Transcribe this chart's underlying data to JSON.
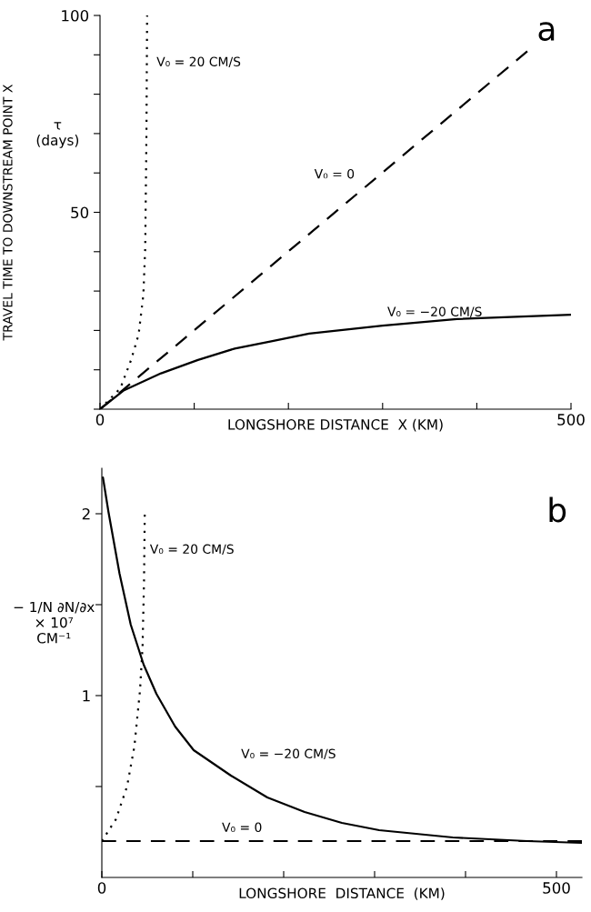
{
  "chart_data": [
    {
      "type": "line",
      "title": "a",
      "xlabel": "LONGSHORE DISTANCE  X (KM)",
      "ylabel": "TRAVEL TIME TO DOWNSTREAM POINT X",
      "xlim": [
        0,
        500
      ],
      "ylim": [
        0,
        100
      ],
      "xticks": [
        0,
        {
          "value": 100,
          "label": null
        },
        {
          "value": 200,
          "label": null
        },
        {
          "value": 300,
          "label": null
        },
        {
          "value": 400,
          "label": null
        },
        500
      ],
      "yticks": [
        {
          "value": 0,
          "label": null
        },
        {
          "value": 10,
          "label": null
        },
        {
          "value": 20,
          "label": null
        },
        {
          "value": 30,
          "label": null
        },
        {
          "value": 40,
          "label": null
        },
        50,
        {
          "value": 60,
          "label": null
        },
        {
          "value": 70,
          "label": null
        },
        {
          "value": 80,
          "label": null
        },
        {
          "value": 90,
          "label": null
        },
        100
      ],
      "tick_labels": "xy",
      "grid": false,
      "legend": false,
      "series": [
        {
          "name": "V₀ = 20 CM/S",
          "color": "#000000",
          "line_style": "dotted",
          "x": [
            0,
            21.6,
            33,
            41,
            46,
            48,
            49.3,
            50
          ],
          "values": [
            0,
            5.3,
            12.5,
            19,
            29,
            41,
            70,
            100
          ]
        },
        {
          "name": "V₀ = 0",
          "color": "#000000",
          "line_style": "dashed",
          "x": [
            0,
            453.6
          ],
          "values": [
            0,
            90.9
          ]
        },
        {
          "name": "V₀ = −20 CM/S",
          "color": "#000000",
          "line_style": "solid",
          "x": [
            0,
            25.5,
            64.8,
            104,
            143,
            183,
            222,
            300,
            379,
            500
          ],
          "values": [
            0,
            4.8,
            9.1,
            12.5,
            15.4,
            17.3,
            19.2,
            21.2,
            22.9,
            24.0
          ]
        }
      ],
      "annotations": [
        "τ\n(days)"
      ]
    },
    {
      "type": "line",
      "title": "b",
      "xlabel": "LONGSHORE  DISTANCE  (KM)",
      "ylabel": "− 1/N ∂N/∂x\n× 10⁷\nCM⁻¹",
      "xlim": [
        0,
        528
      ],
      "ylim": [
        0,
        2.25
      ],
      "xticks": [
        0,
        {
          "value": 100,
          "label": null
        },
        {
          "value": 200,
          "label": null
        },
        {
          "value": 300,
          "label": null
        },
        {
          "value": 400,
          "label": null
        },
        500
      ],
      "yticks": [
        {
          "value": 0.5,
          "label": null
        },
        1,
        {
          "value": 1.5,
          "label": null
        },
        2
      ],
      "grid": false,
      "legend": false,
      "series": [
        {
          "name": "V₀ = 20 CM/S",
          "color": "#000000",
          "line_style": "dotted",
          "x": [
            0,
            15.5,
            27.7,
            35.8,
            42,
            44.8,
            46.4,
            47.2
          ],
          "values": [
            0.2,
            0.32,
            0.5,
            0.72,
            1.03,
            1.27,
            1.63,
            2.0
          ]
        },
        {
          "name": "V₀ = 0",
          "color": "#000000",
          "line_style": "dashed",
          "x": [
            0,
            528
          ],
          "values": [
            0.2,
            0.2
          ]
        },
        {
          "name": "V₀ = −20 CM/S",
          "color": "#000000",
          "line_style": "solid",
          "x": [
            1.2,
            7.3,
            19.5,
            31.8,
            46,
            60,
            80.6,
            101,
            142,
            182,
            223,
            264,
            305,
            386,
            468,
            528
          ],
          "values": [
            2.2,
            2.01,
            1.67,
            1.39,
            1.17,
            1.01,
            0.83,
            0.7,
            0.56,
            0.44,
            0.36,
            0.3,
            0.26,
            0.22,
            0.2,
            0.19
          ]
        }
      ]
    }
  ]
}
